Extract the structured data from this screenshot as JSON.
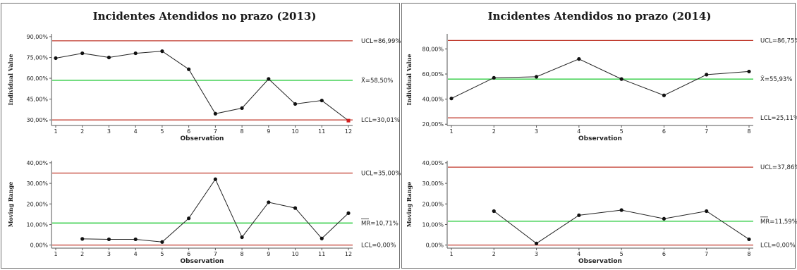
{
  "chart_data": [
    {
      "type": "line",
      "title": "Incidentes Atendidos no prazo (2013)",
      "xlabel": "Observation",
      "ylabel": "Individual Value",
      "x": [
        1,
        2,
        3,
        4,
        5,
        6,
        7,
        8,
        9,
        10,
        11,
        12
      ],
      "values": [
        74.5,
        78.0,
        75.0,
        78.0,
        79.5,
        66.5,
        34.5,
        38.5,
        59.5,
        41.5,
        44.0,
        29.5
      ],
      "ylim": [
        26,
        92
      ],
      "yticks": [
        30,
        45,
        60,
        75,
        90
      ],
      "ytick_labels": [
        "30,00%",
        "45,00%",
        "60,00%",
        "75,00%",
        "90,00%"
      ],
      "ucl": 86.99,
      "cl": 58.5,
      "lcl": 30.01,
      "ucl_label": "UCL=86,99%",
      "cl_label": "X̄=58,50%",
      "lcl_label": "LCL=30,01%",
      "out_of_control_x": [
        12
      ]
    },
    {
      "type": "line",
      "title": "",
      "xlabel": "Observation",
      "ylabel": "Moving Range",
      "x": [
        2,
        3,
        4,
        5,
        6,
        7,
        8,
        9,
        10,
        11,
        12
      ],
      "values": [
        3.0,
        2.8,
        2.8,
        1.5,
        13.0,
        32.0,
        3.8,
        20.8,
        18.0,
        3.2,
        15.5
      ],
      "x_range": [
        1,
        12
      ],
      "ylim": [
        -1.5,
        41
      ],
      "yticks": [
        0,
        10,
        20,
        30,
        40
      ],
      "ytick_labels": [
        "0,00%",
        "10,00%",
        "20,00%",
        "30,00%",
        "40,00%"
      ],
      "ucl": 35.0,
      "cl": 10.71,
      "lcl": 0.0,
      "ucl_label": "UCL=35,00%",
      "cl_label": "MR=10,71%",
      "lcl_label": "LCL=0,00%"
    },
    {
      "type": "line",
      "title": "Incidentes Atendidos no prazo (2014)",
      "xlabel": "Observation",
      "ylabel": "Individual Value",
      "x": [
        1,
        2,
        3,
        4,
        5,
        6,
        7,
        8
      ],
      "values": [
        40.5,
        57.0,
        57.8,
        72.0,
        56.0,
        43.0,
        59.5,
        62.0
      ],
      "ylim": [
        19,
        92
      ],
      "yticks": [
        20,
        40,
        60,
        80
      ],
      "ytick_labels": [
        "20,00%",
        "40,00%",
        "60,00%",
        "80,00%"
      ],
      "ucl": 86.75,
      "cl": 55.93,
      "lcl": 25.11,
      "ucl_label": "UCL=86,75%",
      "cl_label": "X̄=55,93%",
      "lcl_label": "LCL=25,11%",
      "out_of_control_x": []
    },
    {
      "type": "line",
      "title": "",
      "xlabel": "Observation",
      "ylabel": "Moving Range",
      "x": [
        2,
        3,
        4,
        5,
        6,
        7,
        8
      ],
      "values": [
        16.5,
        0.8,
        14.5,
        17.0,
        12.8,
        16.5,
        2.8
      ],
      "x_range": [
        1,
        8
      ],
      "ylim": [
        -1.5,
        41
      ],
      "yticks": [
        0,
        10,
        20,
        30,
        40
      ],
      "ytick_labels": [
        "0,00%",
        "10,00%",
        "20,00%",
        "30,00%",
        "40,00%"
      ],
      "ucl": 37.86,
      "cl": 11.59,
      "lcl": 0.0,
      "ucl_label": "UCL=37,86%",
      "cl_label": "MR=11,59%",
      "lcl_label": "LCL=0,00%"
    }
  ],
  "colors": {
    "limit_line": "#c0392b",
    "center_line": "#2ecc40",
    "series": "#222222",
    "out_of_control_point": "#d21f1f"
  }
}
